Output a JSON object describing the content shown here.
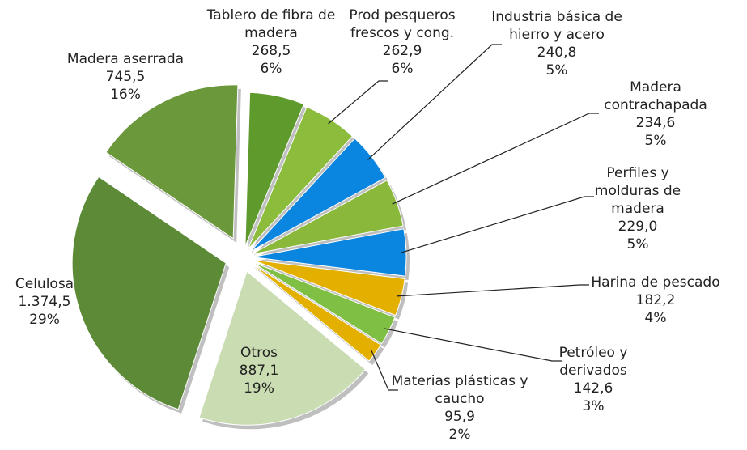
{
  "chart_data": {
    "type": "pie",
    "categories": [
      "Tablero de fibra de madera",
      "Prod pesqueros frescos y cong.",
      "Industria básica de hierro y acero",
      "Madera contrachapada",
      "Perfiles y molduras de madera",
      "Harina de pescado",
      "Petróleo y derivados",
      "Materias plásticas y caucho",
      "Otros",
      "Celulosa",
      "Madera aserrada"
    ],
    "values": [
      268.5,
      262.9,
      240.8,
      234.6,
      229.0,
      182.2,
      142.6,
      95.9,
      887.1,
      1374.5,
      745.5
    ],
    "value_labels": [
      "268,5",
      "262,9",
      "240,8",
      "234,6",
      "229,0",
      "182,2",
      "142,6",
      "95,9",
      "887,1",
      "1.374,5",
      "745,5"
    ],
    "percent_labels": [
      "6%",
      "6%",
      "5%",
      "5%",
      "5%",
      "4%",
      "3%",
      "2%",
      "19%",
      "29%",
      "16%"
    ],
    "colors": [
      "#5e9a2c",
      "#8cbc3c",
      "#0a86e0",
      "#8ab83a",
      "#0a86e0",
      "#e4b000",
      "#7fbf44",
      "#e4b000",
      "#c9dcb2",
      "#5c8a36",
      "#6c983c"
    ]
  }
}
